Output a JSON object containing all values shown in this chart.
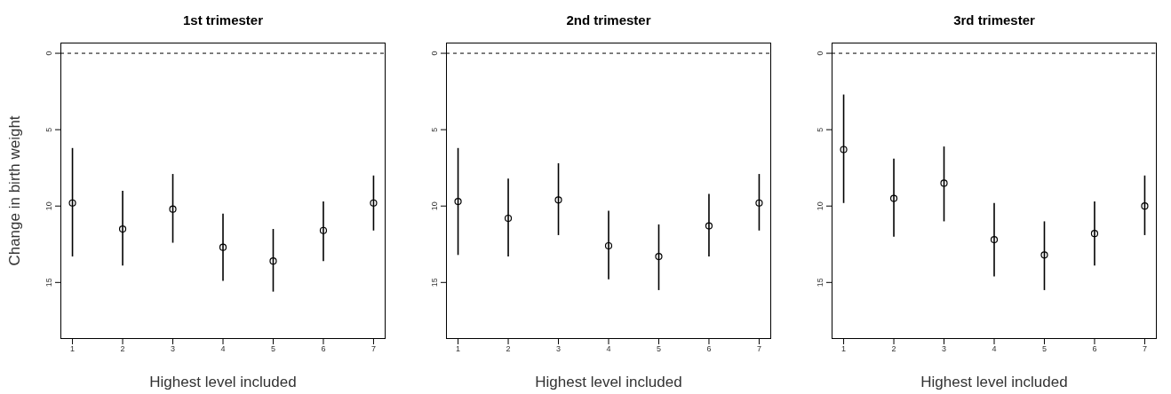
{
  "chart_data": [
    {
      "type": "scatter",
      "title": "1st trimester",
      "xlabel": "Highest level included",
      "ylabel": "Change in birth weight",
      "x": [
        1,
        2,
        3,
        4,
        5,
        6,
        7
      ],
      "values": [
        9.8,
        11.5,
        10.2,
        12.7,
        13.6,
        11.6,
        9.8
      ],
      "errors": [
        [
          6.2,
          13.3
        ],
        [
          9.0,
          13.9
        ],
        [
          7.9,
          12.4
        ],
        [
          10.5,
          14.9
        ],
        [
          11.5,
          15.6
        ],
        [
          9.7,
          13.6
        ],
        [
          8.0,
          11.6
        ]
      ],
      "color": "#000000",
      "marker": "circle",
      "xlim": [
        0.76,
        7.24
      ],
      "xticks": [
        1,
        2,
        3,
        4,
        5,
        6,
        7
      ],
      "ylim": [
        18.7,
        -0.7
      ],
      "yticks": [
        0,
        5,
        10,
        15
      ],
      "grid": false,
      "legend": false,
      "ref_lines": [
        {
          "axis": "y",
          "value": 0,
          "line_style": "dashed",
          "color": "#000000"
        }
      ]
    },
    {
      "type": "scatter",
      "title": "2nd trimester",
      "xlabel": "Highest level included",
      "x": [
        1,
        2,
        3,
        4,
        5,
        6,
        7
      ],
      "values": [
        9.7,
        10.8,
        9.6,
        12.6,
        13.3,
        11.3,
        9.8
      ],
      "errors": [
        [
          6.2,
          13.2
        ],
        [
          8.2,
          13.3
        ],
        [
          7.2,
          11.9
        ],
        [
          10.3,
          14.8
        ],
        [
          11.2,
          15.5
        ],
        [
          9.2,
          13.3
        ],
        [
          7.9,
          11.6
        ]
      ],
      "color": "#000000",
      "marker": "circle",
      "xlim": [
        0.76,
        7.24
      ],
      "xticks": [
        1,
        2,
        3,
        4,
        5,
        6,
        7
      ],
      "ylim": [
        18.7,
        -0.7
      ],
      "yticks": [
        0,
        5,
        10,
        15
      ],
      "grid": false,
      "legend": false,
      "ref_lines": [
        {
          "axis": "y",
          "value": 0,
          "line_style": "dashed",
          "color": "#000000"
        }
      ]
    },
    {
      "type": "scatter",
      "title": "3rd trimester",
      "xlabel": "Highest level included",
      "x": [
        1,
        2,
        3,
        4,
        5,
        6,
        7
      ],
      "values": [
        6.3,
        9.5,
        8.5,
        12.2,
        13.2,
        11.8,
        10.0
      ],
      "errors": [
        [
          2.7,
          9.8
        ],
        [
          6.9,
          12.0
        ],
        [
          6.1,
          11.0
        ],
        [
          9.8,
          14.6
        ],
        [
          11.0,
          15.5
        ],
        [
          9.7,
          13.9
        ],
        [
          8.0,
          11.9
        ]
      ],
      "color": "#000000",
      "marker": "circle",
      "xlim": [
        0.76,
        7.24
      ],
      "xticks": [
        1,
        2,
        3,
        4,
        5,
        6,
        7
      ],
      "ylim": [
        18.7,
        -0.7
      ],
      "yticks": [
        0,
        5,
        10,
        15
      ],
      "grid": false,
      "legend": false,
      "ref_lines": [
        {
          "axis": "y",
          "value": 0,
          "line_style": "dashed",
          "color": "#000000"
        }
      ]
    }
  ]
}
